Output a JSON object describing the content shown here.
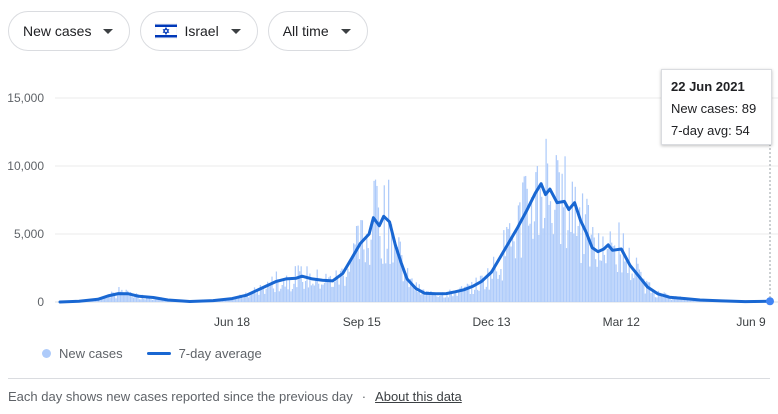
{
  "filters": {
    "metric": "New cases",
    "location": "Israel",
    "range": "All time"
  },
  "tooltip": {
    "date": "22 Jun 2021",
    "new_cases": "New cases: 89",
    "avg": "7-day avg: 54"
  },
  "legend": {
    "bars": "New cases",
    "line": "7-day average"
  },
  "footer": {
    "text": "Each day shows new cases reported since the previous day",
    "separator": "·",
    "link": "About this data"
  },
  "colors": {
    "bars": "#aecbfa",
    "line": "#1967d2",
    "grid": "#ebebeb"
  },
  "chart_data": {
    "type": "bar",
    "x_range": [
      "2020-02-21",
      "2021-06-22"
    ],
    "ylim": [
      0,
      15000
    ],
    "y_ticks": [
      0,
      5000,
      10000,
      15000
    ],
    "y_tick_labels": [
      "0",
      "5,000",
      "10,000",
      "15,000"
    ],
    "x_ticks": [
      {
        "date": "2020-06-18",
        "label": "Jun 18"
      },
      {
        "date": "2020-09-15",
        "label": "Sep 15"
      },
      {
        "date": "2020-12-13",
        "label": "Dec 13"
      },
      {
        "date": "2021-03-12",
        "label": "Mar 12"
      },
      {
        "date": "2021-06-09",
        "label": "Jun 9"
      }
    ],
    "grid": true,
    "legend_position": "bottom-left",
    "series": [
      {
        "name": "7-day average",
        "kind": "line",
        "points": [
          [
            "2020-02-21",
            0
          ],
          [
            "2020-03-05",
            50
          ],
          [
            "2020-03-18",
            200
          ],
          [
            "2020-03-25",
            450
          ],
          [
            "2020-04-01",
            620
          ],
          [
            "2020-04-08",
            600
          ],
          [
            "2020-04-15",
            420
          ],
          [
            "2020-04-25",
            330
          ],
          [
            "2020-05-05",
            150
          ],
          [
            "2020-05-20",
            40
          ],
          [
            "2020-06-05",
            100
          ],
          [
            "2020-06-18",
            250
          ],
          [
            "2020-06-28",
            500
          ],
          [
            "2020-07-08",
            1000
          ],
          [
            "2020-07-18",
            1500
          ],
          [
            "2020-07-25",
            1700
          ],
          [
            "2020-08-01",
            1750
          ],
          [
            "2020-08-05",
            1900
          ],
          [
            "2020-08-12",
            1700
          ],
          [
            "2020-08-19",
            1600
          ],
          [
            "2020-08-26",
            1550
          ],
          [
            "2020-09-02",
            2100
          ],
          [
            "2020-09-08",
            3200
          ],
          [
            "2020-09-14",
            4300
          ],
          [
            "2020-09-20",
            5000
          ],
          [
            "2020-09-23",
            6200
          ],
          [
            "2020-09-27",
            5600
          ],
          [
            "2020-09-30",
            6300
          ],
          [
            "2020-10-04",
            5900
          ],
          [
            "2020-10-08",
            4200
          ],
          [
            "2020-10-12",
            2900
          ],
          [
            "2020-10-16",
            1700
          ],
          [
            "2020-10-22",
            1000
          ],
          [
            "2020-10-28",
            650
          ],
          [
            "2020-11-05",
            600
          ],
          [
            "2020-11-12",
            620
          ],
          [
            "2020-11-18",
            750
          ],
          [
            "2020-11-24",
            900
          ],
          [
            "2020-11-30",
            1150
          ],
          [
            "2020-12-06",
            1500
          ],
          [
            "2020-12-13",
            2200
          ],
          [
            "2020-12-19",
            3300
          ],
          [
            "2020-12-25",
            4400
          ],
          [
            "2020-12-31",
            5500
          ],
          [
            "2021-01-06",
            6700
          ],
          [
            "2021-01-12",
            8000
          ],
          [
            "2021-01-16",
            8700
          ],
          [
            "2021-01-19",
            7900
          ],
          [
            "2021-01-22",
            8300
          ],
          [
            "2021-01-27",
            7300
          ],
          [
            "2021-02-01",
            7400
          ],
          [
            "2021-02-04",
            6800
          ],
          [
            "2021-02-08",
            7300
          ],
          [
            "2021-02-12",
            6000
          ],
          [
            "2021-02-16",
            5100
          ],
          [
            "2021-02-20",
            4000
          ],
          [
            "2021-02-24",
            3700
          ],
          [
            "2021-02-28",
            3900
          ],
          [
            "2021-03-03",
            4200
          ],
          [
            "2021-03-06",
            3800
          ],
          [
            "2021-03-12",
            3900
          ],
          [
            "2021-03-18",
            2700
          ],
          [
            "2021-03-24",
            1900
          ],
          [
            "2021-03-30",
            1100
          ],
          [
            "2021-04-06",
            600
          ],
          [
            "2021-04-14",
            350
          ],
          [
            "2021-04-25",
            250
          ],
          [
            "2021-05-05",
            150
          ],
          [
            "2021-05-20",
            80
          ],
          [
            "2021-06-05",
            30
          ],
          [
            "2021-06-22",
            54
          ]
        ]
      },
      {
        "name": "New cases",
        "kind": "bar",
        "description": "Daily values vary around the 7-day average; notable peaks approx. 1,100 (early Apr 2020), 9,000 (late Sep 2020), 12,000 (late Jan 2021)",
        "peaks": [
          [
            "2020-04-01",
            1100
          ],
          [
            "2020-09-24",
            9000
          ],
          [
            "2021-01-19",
            12000
          ]
        ]
      }
    ]
  }
}
